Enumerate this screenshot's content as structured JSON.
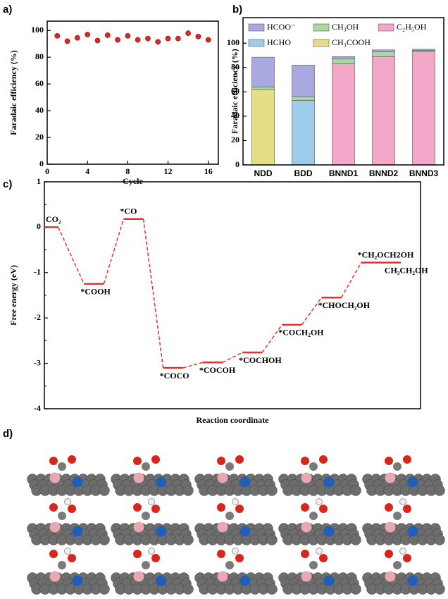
{
  "chart_data": [
    {
      "type": "scatter",
      "panel_label": "a)",
      "xlabel": "Cycle",
      "ylabel": "Faradaic efficiency (%)",
      "x": [
        1,
        2,
        3,
        4,
        5,
        6,
        7,
        8,
        9,
        10,
        11,
        12,
        13,
        14,
        15,
        16
      ],
      "values": [
        96,
        92,
        94.5,
        97,
        92.5,
        96.5,
        93,
        96,
        93,
        94,
        91.5,
        94,
        94,
        98,
        95.5,
        93
      ],
      "color": "#d42a2a",
      "xlim": [
        0,
        17
      ],
      "xticks": [
        0,
        4,
        8,
        12,
        16
      ],
      "ylim": [
        0,
        107
      ],
      "yticks": [
        0,
        20,
        40,
        60,
        80,
        100
      ]
    },
    {
      "type": "bar",
      "panel_label": "b)",
      "ylabel": "Faradaic efficiency (%)",
      "categories": [
        "NDD",
        "BDD",
        "BNND1",
        "BNND2",
        "BNND3"
      ],
      "series": [
        {
          "name": "CH₃COOH",
          "color": "#e4df86",
          "values": [
            62,
            0,
            0,
            0,
            0
          ]
        },
        {
          "name": "HCHO",
          "color": "#9fcbea",
          "values": [
            0,
            53,
            0,
            0,
            0
          ]
        },
        {
          "name": "C₂H₅OH",
          "color": "#f3a7c9",
          "values": [
            0,
            0,
            83,
            89,
            93
          ]
        },
        {
          "name": "CH₃OH",
          "color": "#a9d99f",
          "values": [
            2,
            3,
            4,
            4,
            1
          ]
        },
        {
          "name": "HCOO⁻",
          "color": "#a9a9df",
          "values": [
            24.5,
            26,
            2,
            1.5,
            1
          ]
        }
      ],
      "ylim": [
        0,
        121
      ],
      "yticks": [
        0,
        20,
        40,
        60,
        80,
        100
      ]
    },
    {
      "type": "step",
      "panel_label": "c)",
      "xlabel": "Reaction coordinate",
      "ylabel": "Free energy (eV)",
      "categories": [
        "CO₂",
        "*COOH",
        "*CO",
        "*COCO",
        "*COCOH",
        "*COCHOH",
        "*COCH₂OH",
        "*CHOCH₂OH",
        "*CH₂OCH2OH",
        "CH₃CH₂OH"
      ],
      "values": [
        0,
        -1.25,
        0.18,
        -3.1,
        -2.98,
        -2.76,
        -2.15,
        -1.55,
        -0.78,
        -0.78
      ],
      "color": "#e8312a",
      "ylim": [
        -4,
        1
      ],
      "yticks": [
        -4,
        -3,
        -2,
        -1,
        0,
        1
      ]
    }
  ],
  "figure_d": {
    "panel_label": "d)"
  }
}
